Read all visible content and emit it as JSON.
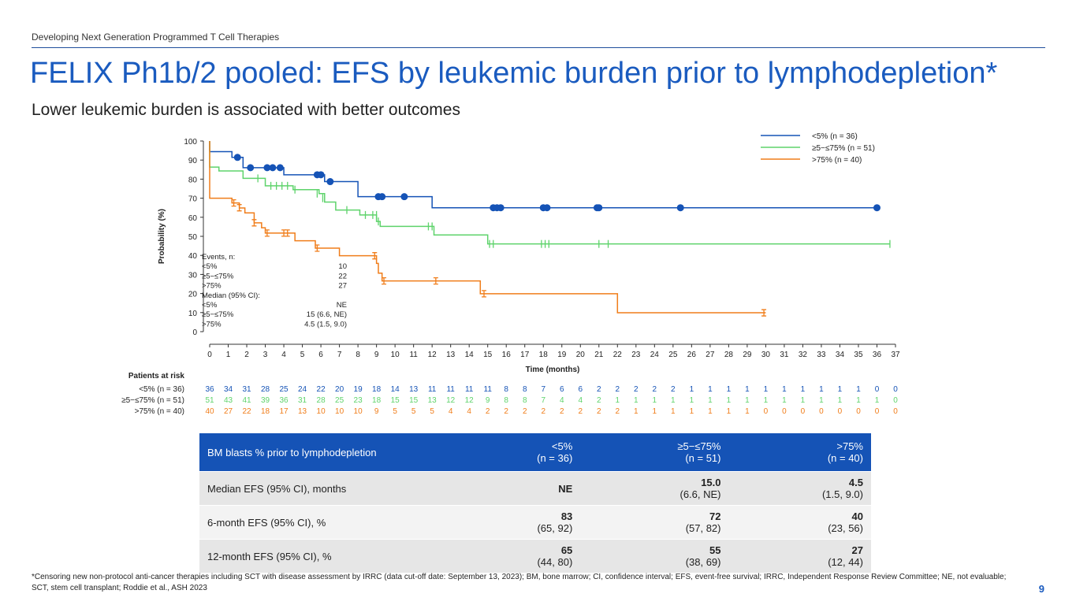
{
  "header": {
    "supertitle": "Developing Next Generation Programmed T Cell Therapies",
    "title": "FELIX Ph1b/2 pooled: EFS by leukemic burden prior to lymphodepletion*",
    "subtitle": "Lower leukemic burden is associated with better outcomes"
  },
  "chart_data": {
    "type": "line",
    "subtype": "kaplan-meier",
    "xlabel": "Time (months)",
    "ylabel": "Probability (%)",
    "xlim": [
      0,
      37
    ],
    "ylim": [
      0,
      100
    ],
    "xticks": [
      0,
      1,
      2,
      3,
      4,
      5,
      6,
      7,
      8,
      9,
      10,
      11,
      12,
      13,
      14,
      15,
      16,
      17,
      18,
      19,
      20,
      21,
      22,
      23,
      24,
      25,
      26,
      27,
      28,
      29,
      30,
      31,
      32,
      33,
      34,
      35,
      36,
      37
    ],
    "yticks": [
      0,
      10,
      20,
      30,
      40,
      50,
      60,
      70,
      80,
      90,
      100
    ],
    "legend_position": "top-right",
    "series": [
      {
        "name": "<5% (n = 36)",
        "color": "#1553b6",
        "marker": "dot",
        "steps": [
          [
            0,
            100
          ],
          [
            0,
            94.4
          ],
          [
            1.2,
            91.4
          ],
          [
            1.8,
            86
          ],
          [
            4,
            82.3
          ],
          [
            6.2,
            78.7
          ],
          [
            8,
            70.8
          ],
          [
            12,
            65
          ]
        ],
        "censor": [
          [
            1.5,
            91.4
          ],
          [
            2.2,
            86
          ],
          [
            3.1,
            86
          ],
          [
            3.4,
            86
          ],
          [
            3.8,
            86
          ],
          [
            5.8,
            82.3
          ],
          [
            6,
            82.3
          ],
          [
            6.5,
            78.7
          ],
          [
            9.1,
            70.8
          ],
          [
            9.3,
            70.8
          ],
          [
            10.5,
            70.8
          ],
          [
            15.3,
            65
          ],
          [
            15.5,
            65
          ],
          [
            15.7,
            65
          ],
          [
            18,
            65
          ],
          [
            18.2,
            65
          ],
          [
            20.9,
            65
          ],
          [
            21,
            65
          ],
          [
            25.4,
            65
          ],
          [
            36,
            65
          ]
        ]
      },
      {
        "name": "≥5−≤75% (n = 51)",
        "color": "#5ed36b",
        "marker": "tick",
        "steps": [
          [
            0,
            100
          ],
          [
            0,
            86.3
          ],
          [
            0.5,
            84.3
          ],
          [
            1.8,
            80.4
          ],
          [
            3,
            76.5
          ],
          [
            4.5,
            74.5
          ],
          [
            5.9,
            72.4
          ],
          [
            6.2,
            68
          ],
          [
            6.8,
            63.8
          ],
          [
            8.1,
            61.2
          ],
          [
            9,
            57.8
          ],
          [
            9.2,
            55.2
          ],
          [
            12.1,
            50.7
          ],
          [
            15,
            46
          ]
        ],
        "censor": [
          [
            2.6,
            80.4
          ],
          [
            3.3,
            76.5
          ],
          [
            3.6,
            76.5
          ],
          [
            3.9,
            76.5
          ],
          [
            4.2,
            76.5
          ],
          [
            4.6,
            74.5
          ],
          [
            5.8,
            72.4
          ],
          [
            6.1,
            70
          ],
          [
            7.4,
            63.8
          ],
          [
            8.4,
            61.2
          ],
          [
            8.8,
            61.2
          ],
          [
            9,
            61.2
          ],
          [
            9.1,
            57.8
          ],
          [
            11.8,
            55.2
          ],
          [
            12,
            55.2
          ],
          [
            15.1,
            46
          ],
          [
            15.3,
            46
          ],
          [
            17.9,
            46
          ],
          [
            18.1,
            46
          ],
          [
            18.3,
            46
          ],
          [
            21,
            46
          ],
          [
            21.5,
            46
          ],
          [
            36.7,
            46
          ]
        ]
      },
      {
        "name": ">75% (n = 40)",
        "color": "#f07d1a",
        "marker": "errbar",
        "steps": [
          [
            0,
            100
          ],
          [
            0,
            70
          ],
          [
            1.2,
            67.5
          ],
          [
            1.6,
            64.9
          ],
          [
            1.9,
            62.3
          ],
          [
            2.4,
            57.1
          ],
          [
            2.8,
            54.5
          ],
          [
            3,
            51.7
          ],
          [
            4.6,
            47.7
          ],
          [
            5.7,
            43.8
          ],
          [
            7,
            39.8
          ],
          [
            9,
            35.8
          ],
          [
            9.1,
            30.7
          ],
          [
            9.3,
            26.6
          ],
          [
            14.6,
            19.9
          ],
          [
            22,
            9.9
          ]
        ],
        "censor": [
          [
            1.3,
            67.5
          ],
          [
            1.6,
            65
          ],
          [
            2.4,
            57.1
          ],
          [
            3.1,
            51.7
          ],
          [
            4,
            51.7
          ],
          [
            4.2,
            51.7
          ],
          [
            5.8,
            43.8
          ],
          [
            8.9,
            39.8
          ],
          [
            9.4,
            26.6
          ],
          [
            12.2,
            26.6
          ],
          [
            14.8,
            19.9
          ],
          [
            29.9,
            9.9
          ]
        ]
      }
    ],
    "annotation": {
      "events_title": "Events, n:",
      "events": [
        [
          "<5%",
          "10"
        ],
        [
          "≥5−≤75%",
          "22"
        ],
        [
          ">75%",
          "27"
        ]
      ],
      "median_title": "Median (95% CI):",
      "median": [
        [
          "<5%",
          "NE"
        ],
        [
          "≥5−≤75%",
          "15 (6.6, NE)"
        ],
        [
          ">75%",
          "4.5 (1.5, 9.0)"
        ]
      ]
    },
    "risk_table": {
      "title": "Patients at risk",
      "rows": [
        {
          "label": "<5% (n = 36)",
          "color": "#1553b6",
          "values": [
            36,
            34,
            31,
            28,
            25,
            24,
            22,
            20,
            19,
            18,
            14,
            13,
            11,
            11,
            11,
            11,
            8,
            8,
            7,
            6,
            6,
            2,
            2,
            2,
            2,
            2,
            1,
            1,
            1,
            1,
            1,
            1,
            1,
            1,
            1,
            1,
            0,
            0
          ]
        },
        {
          "label": "≥5−≤75% (n = 51)",
          "color": "#5ed36b",
          "values": [
            51,
            43,
            41,
            39,
            36,
            31,
            28,
            25,
            23,
            18,
            15,
            15,
            13,
            12,
            12,
            9,
            8,
            8,
            7,
            4,
            4,
            2,
            1,
            1,
            1,
            1,
            1,
            1,
            1,
            1,
            1,
            1,
            1,
            1,
            1,
            1,
            1,
            0
          ]
        },
        {
          "label": ">75% (n = 40)",
          "color": "#f07d1a",
          "values": [
            40,
            27,
            22,
            18,
            17,
            13,
            10,
            10,
            10,
            9,
            5,
            5,
            5,
            4,
            4,
            2,
            2,
            2,
            2,
            2,
            2,
            2,
            2,
            1,
            1,
            1,
            1,
            1,
            1,
            1,
            0,
            0,
            0,
            0,
            0,
            0,
            0,
            0
          ]
        }
      ]
    }
  },
  "table": {
    "header": [
      "BM blasts % prior to lymphodepletion",
      "<5%",
      "(n = 36)",
      "≥5−≤75%",
      "(n = 51)",
      ">75%",
      "(n = 40)"
    ],
    "rows": [
      {
        "label": "Median EFS (95% CI), months",
        "cells": [
          [
            "NE",
            ""
          ],
          [
            "15.0",
            "(6.6, NE)"
          ],
          [
            "4.5",
            "(1.5, 9.0)"
          ]
        ]
      },
      {
        "label": "6-month EFS (95% CI), %",
        "cells": [
          [
            "83",
            "(65, 92)"
          ],
          [
            "72",
            "(57, 82)"
          ],
          [
            "40",
            "(23, 56)"
          ]
        ]
      },
      {
        "label": "12-month EFS (95% CI), %",
        "cells": [
          [
            "65",
            "(44, 80)"
          ],
          [
            "55",
            "(38, 69)"
          ],
          [
            "27",
            "(12, 44)"
          ]
        ]
      }
    ]
  },
  "footnote": "*Censoring new non-protocol anti-cancer therapies including SCT with disease assessment by IRRC (data cut-off date: September 13, 2023); BM, bone marrow; CI, confidence interval; EFS, event-free survival; IRRC, Independent Response Review Committee; NE, not evaluable; SCT, stem cell transplant; Roddie et al., ASH 2023",
  "page_number": "9"
}
